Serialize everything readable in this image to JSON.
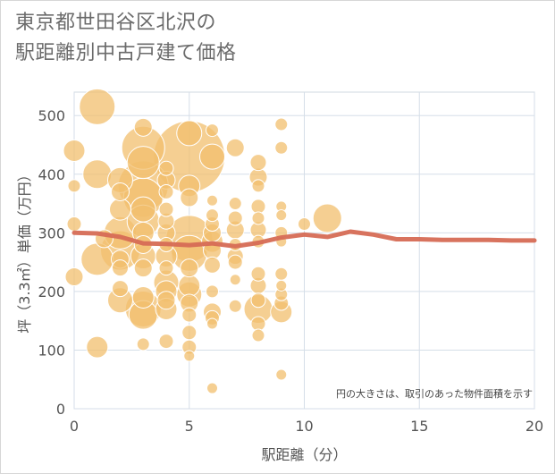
{
  "title_lines": [
    "東京都世田谷区北沢の",
    "駅距離別中古戸建て価格"
  ],
  "chart_data": {
    "type": "scatter",
    "xlabel": "駅距離（分）",
    "ylabel": "坪（3.3㎡）単価（万円）",
    "xlim": [
      0,
      20
    ],
    "ylim": [
      0,
      540
    ],
    "xticks": [
      "0",
      "5",
      "10",
      "15",
      "20"
    ],
    "yticks": [
      "0",
      "100",
      "200",
      "300",
      "400",
      "500"
    ],
    "annotation": "円の大きさは、取引のあった物件面積を示す",
    "grid": true,
    "colors": {
      "bubble": "#f2bf6e",
      "bubble_stroke": "#ffffff",
      "line": "#d66b55",
      "grid": "#d5dee8",
      "plot_border": "#d0d8e0"
    },
    "bubbles": [
      {
        "x": 0,
        "y": 440,
        "s": 12
      },
      {
        "x": 0,
        "y": 380,
        "s": 7
      },
      {
        "x": 0,
        "y": 315,
        "s": 8
      },
      {
        "x": 0,
        "y": 225,
        "s": 10
      },
      {
        "x": 1,
        "y": 515,
        "s": 20
      },
      {
        "x": 1,
        "y": 400,
        "s": 16
      },
      {
        "x": 1,
        "y": 255,
        "s": 18
      },
      {
        "x": 1,
        "y": 105,
        "s": 12
      },
      {
        "x": 1.3,
        "y": 290,
        "s": 10
      },
      {
        "x": 2,
        "y": 390,
        "s": 14
      },
      {
        "x": 2,
        "y": 370,
        "s": 10
      },
      {
        "x": 2,
        "y": 340,
        "s": 12
      },
      {
        "x": 2,
        "y": 300,
        "s": 18
      },
      {
        "x": 2,
        "y": 270,
        "s": 22
      },
      {
        "x": 2,
        "y": 255,
        "s": 10
      },
      {
        "x": 2,
        "y": 240,
        "s": 9
      },
      {
        "x": 2,
        "y": 205,
        "s": 9
      },
      {
        "x": 2,
        "y": 185,
        "s": 14
      },
      {
        "x": 3,
        "y": 480,
        "s": 10
      },
      {
        "x": 3,
        "y": 445,
        "s": 24
      },
      {
        "x": 3,
        "y": 420,
        "s": 18
      },
      {
        "x": 3,
        "y": 380,
        "s": 28
      },
      {
        "x": 3,
        "y": 360,
        "s": 22
      },
      {
        "x": 3,
        "y": 340,
        "s": 14
      },
      {
        "x": 3,
        "y": 320,
        "s": 18
      },
      {
        "x": 3,
        "y": 300,
        "s": 12
      },
      {
        "x": 3,
        "y": 280,
        "s": 10
      },
      {
        "x": 3,
        "y": 260,
        "s": 14
      },
      {
        "x": 3,
        "y": 240,
        "s": 10
      },
      {
        "x": 3,
        "y": 190,
        "s": 12
      },
      {
        "x": 3,
        "y": 170,
        "s": 20
      },
      {
        "x": 3,
        "y": 160,
        "s": 16
      },
      {
        "x": 3,
        "y": 110,
        "s": 7
      },
      {
        "x": 4,
        "y": 410,
        "s": 8
      },
      {
        "x": 4,
        "y": 390,
        "s": 10
      },
      {
        "x": 4,
        "y": 370,
        "s": 8
      },
      {
        "x": 4,
        "y": 340,
        "s": 8
      },
      {
        "x": 4,
        "y": 320,
        "s": 9
      },
      {
        "x": 4,
        "y": 300,
        "s": 10
      },
      {
        "x": 4,
        "y": 280,
        "s": 8
      },
      {
        "x": 4,
        "y": 260,
        "s": 12
      },
      {
        "x": 4,
        "y": 240,
        "s": 8
      },
      {
        "x": 4,
        "y": 215,
        "s": 14
      },
      {
        "x": 4,
        "y": 200,
        "s": 12
      },
      {
        "x": 4,
        "y": 185,
        "s": 10
      },
      {
        "x": 4,
        "y": 170,
        "s": 12
      },
      {
        "x": 4,
        "y": 115,
        "s": 8
      },
      {
        "x": 5,
        "y": 430,
        "s": 40
      },
      {
        "x": 5,
        "y": 470,
        "s": 14
      },
      {
        "x": 5,
        "y": 380,
        "s": 12
      },
      {
        "x": 5,
        "y": 360,
        "s": 10
      },
      {
        "x": 5,
        "y": 290,
        "s": 26
      },
      {
        "x": 5,
        "y": 265,
        "s": 20
      },
      {
        "x": 5,
        "y": 240,
        "s": 10
      },
      {
        "x": 5,
        "y": 210,
        "s": 12
      },
      {
        "x": 5,
        "y": 195,
        "s": 14
      },
      {
        "x": 5,
        "y": 180,
        "s": 10
      },
      {
        "x": 5,
        "y": 160,
        "s": 8
      },
      {
        "x": 5,
        "y": 130,
        "s": 8
      },
      {
        "x": 5,
        "y": 105,
        "s": 8
      },
      {
        "x": 5,
        "y": 90,
        "s": 6
      },
      {
        "x": 6,
        "y": 475,
        "s": 7
      },
      {
        "x": 6,
        "y": 430,
        "s": 14
      },
      {
        "x": 6,
        "y": 355,
        "s": 6
      },
      {
        "x": 6,
        "y": 330,
        "s": 7
      },
      {
        "x": 6,
        "y": 315,
        "s": 8
      },
      {
        "x": 6,
        "y": 300,
        "s": 10
      },
      {
        "x": 6,
        "y": 285,
        "s": 12
      },
      {
        "x": 6,
        "y": 270,
        "s": 10
      },
      {
        "x": 6,
        "y": 245,
        "s": 9
      },
      {
        "x": 6,
        "y": 200,
        "s": 7
      },
      {
        "x": 6,
        "y": 165,
        "s": 10
      },
      {
        "x": 6,
        "y": 155,
        "s": 8
      },
      {
        "x": 6,
        "y": 145,
        "s": 6
      },
      {
        "x": 6,
        "y": 35,
        "s": 6
      },
      {
        "x": 7,
        "y": 445,
        "s": 10
      },
      {
        "x": 7,
        "y": 350,
        "s": 7
      },
      {
        "x": 7,
        "y": 325,
        "s": 8
      },
      {
        "x": 7,
        "y": 305,
        "s": 10
      },
      {
        "x": 7,
        "y": 280,
        "s": 7
      },
      {
        "x": 7,
        "y": 260,
        "s": 9
      },
      {
        "x": 7,
        "y": 250,
        "s": 8
      },
      {
        "x": 7,
        "y": 220,
        "s": 6
      },
      {
        "x": 7,
        "y": 175,
        "s": 7
      },
      {
        "x": 8,
        "y": 420,
        "s": 9
      },
      {
        "x": 8,
        "y": 395,
        "s": 10
      },
      {
        "x": 8,
        "y": 380,
        "s": 7
      },
      {
        "x": 8,
        "y": 345,
        "s": 8
      },
      {
        "x": 8,
        "y": 325,
        "s": 7
      },
      {
        "x": 8,
        "y": 305,
        "s": 9
      },
      {
        "x": 8,
        "y": 285,
        "s": 7
      },
      {
        "x": 8,
        "y": 230,
        "s": 8
      },
      {
        "x": 8,
        "y": 210,
        "s": 9
      },
      {
        "x": 8,
        "y": 185,
        "s": 8
      },
      {
        "x": 8,
        "y": 170,
        "s": 16
      },
      {
        "x": 8,
        "y": 145,
        "s": 8
      },
      {
        "x": 8,
        "y": 125,
        "s": 7
      },
      {
        "x": 9,
        "y": 485,
        "s": 7
      },
      {
        "x": 9,
        "y": 445,
        "s": 7
      },
      {
        "x": 9,
        "y": 345,
        "s": 6
      },
      {
        "x": 9,
        "y": 330,
        "s": 6
      },
      {
        "x": 9,
        "y": 300,
        "s": 7
      },
      {
        "x": 9,
        "y": 285,
        "s": 6
      },
      {
        "x": 9,
        "y": 230,
        "s": 7
      },
      {
        "x": 9,
        "y": 210,
        "s": 6
      },
      {
        "x": 9,
        "y": 195,
        "s": 7
      },
      {
        "x": 9,
        "y": 180,
        "s": 8
      },
      {
        "x": 9,
        "y": 165,
        "s": 12
      },
      {
        "x": 9,
        "y": 58,
        "s": 6
      },
      {
        "x": 10,
        "y": 315,
        "s": 7
      },
      {
        "x": 11,
        "y": 325,
        "s": 16
      }
    ],
    "trend": {
      "x": [
        0,
        1,
        2,
        3,
        4,
        5,
        6,
        7,
        8,
        9,
        10,
        11,
        12,
        13,
        14,
        15,
        16,
        17,
        18,
        19,
        20
      ],
      "y": [
        300,
        299,
        293,
        282,
        281,
        279,
        282,
        277,
        283,
        292,
        297,
        293,
        302,
        297,
        289,
        289,
        288,
        288,
        288,
        287,
        287
      ]
    }
  }
}
